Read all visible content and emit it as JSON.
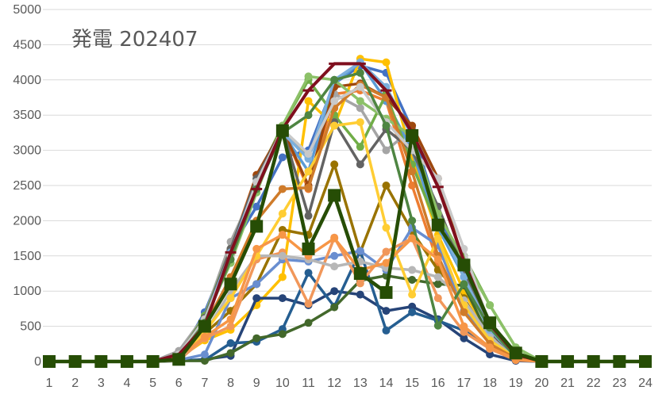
{
  "chart_data": {
    "type": "line",
    "title": "発電 202407",
    "xlabel": "",
    "ylabel": "",
    "categories": [
      "1",
      "2",
      "3",
      "4",
      "5",
      "6",
      "7",
      "8",
      "9",
      "10",
      "11",
      "12",
      "13",
      "14",
      "15",
      "16",
      "17",
      "18",
      "19",
      "20",
      "21",
      "22",
      "23",
      "24"
    ],
    "ylim": [
      0,
      5000
    ],
    "yticks": [
      0,
      500,
      1000,
      1500,
      2000,
      2500,
      3000,
      3500,
      4000,
      4500,
      5000
    ],
    "grid": true,
    "legend": "none",
    "series": [
      {
        "color": "#4472c4",
        "marker": "circle",
        "values": [
          0,
          0,
          0,
          0,
          0,
          60,
          700,
          1600,
          2200,
          2900,
          3000,
          3950,
          4200,
          4100,
          3300,
          2100,
          1300,
          500,
          80,
          0,
          0,
          0,
          0,
          0
        ]
      },
      {
        "color": "#ed7d31",
        "marker": "circle",
        "values": [
          0,
          0,
          0,
          0,
          0,
          70,
          600,
          1600,
          2650,
          3300,
          2450,
          3800,
          3850,
          3700,
          2500,
          1400,
          900,
          300,
          50,
          0,
          0,
          0,
          0,
          0
        ]
      },
      {
        "color": "#a5a5a5",
        "marker": "circle",
        "values": [
          0,
          0,
          0,
          0,
          0,
          150,
          650,
          1700,
          2500,
          3300,
          2900,
          3800,
          3600,
          3000,
          3300,
          2600,
          1400,
          450,
          70,
          0,
          0,
          0,
          0,
          0
        ]
      },
      {
        "color": "#ffc000",
        "marker": "circle",
        "values": [
          0,
          0,
          0,
          0,
          0,
          50,
          300,
          450,
          800,
          1200,
          3700,
          3350,
          4300,
          4250,
          2900,
          1800,
          1000,
          350,
          60,
          0,
          0,
          0,
          0,
          0
        ]
      },
      {
        "color": "#5b9bd5",
        "marker": "circle",
        "values": [
          0,
          0,
          0,
          0,
          0,
          60,
          620,
          1500,
          2450,
          3250,
          2700,
          3950,
          4250,
          3700,
          3000,
          1900,
          1200,
          420,
          70,
          0,
          0,
          0,
          0,
          0
        ]
      },
      {
        "color": "#70ad47",
        "marker": "circle",
        "values": [
          0,
          0,
          0,
          0,
          0,
          80,
          650,
          1600,
          2600,
          3350,
          4000,
          3500,
          3050,
          3800,
          2800,
          1900,
          1500,
          800,
          200,
          0,
          0,
          0,
          0,
          0
        ]
      },
      {
        "color": "#264478",
        "marker": "circle",
        "values": [
          0,
          0,
          0,
          0,
          0,
          10,
          30,
          80,
          900,
          900,
          800,
          1000,
          950,
          720,
          780,
          600,
          330,
          100,
          10,
          0,
          0,
          0,
          0,
          0
        ]
      },
      {
        "color": "#9e480e",
        "marker": "circle",
        "values": [
          0,
          0,
          0,
          0,
          0,
          80,
          600,
          1550,
          2650,
          3300,
          2500,
          3900,
          3950,
          3750,
          3350,
          2600,
          1400,
          500,
          80,
          0,
          0,
          0,
          0,
          0
        ]
      },
      {
        "color": "#636363",
        "marker": "circle",
        "values": [
          0,
          0,
          0,
          0,
          0,
          90,
          620,
          1600,
          2600,
          3300,
          2070,
          3400,
          2800,
          3300,
          3000,
          2200,
          1300,
          420,
          60,
          0,
          0,
          0,
          0,
          0
        ]
      },
      {
        "color": "#997300",
        "marker": "circle",
        "values": [
          0,
          0,
          0,
          0,
          0,
          40,
          400,
          720,
          1100,
          1870,
          1800,
          2800,
          1550,
          2500,
          1850,
          1300,
          900,
          300,
          40,
          0,
          0,
          0,
          0,
          0
        ]
      },
      {
        "color": "#255e91",
        "marker": "circle",
        "values": [
          0,
          0,
          0,
          0,
          0,
          20,
          20,
          260,
          280,
          460,
          1260,
          780,
          1570,
          440,
          700,
          580,
          440,
          200,
          20,
          0,
          0,
          0,
          0,
          0
        ]
      },
      {
        "color": "#43682b",
        "marker": "circle",
        "values": [
          0,
          0,
          0,
          0,
          0,
          10,
          10,
          120,
          330,
          390,
          550,
          770,
          1150,
          1220,
          1160,
          1100,
          1080,
          330,
          40,
          0,
          0,
          0,
          0,
          0
        ]
      },
      {
        "color": "#698ed0",
        "marker": "circle",
        "values": [
          0,
          0,
          0,
          0,
          0,
          20,
          100,
          900,
          1100,
          1450,
          1420,
          1500,
          1570,
          1300,
          1900,
          1650,
          720,
          300,
          40,
          0,
          0,
          0,
          0,
          0
        ]
      },
      {
        "color": "#f1975a",
        "marker": "circle",
        "values": [
          0,
          0,
          0,
          0,
          0,
          20,
          330,
          500,
          1450,
          1550,
          820,
          1760,
          1110,
          1560,
          1750,
          900,
          420,
          180,
          20,
          0,
          0,
          0,
          0,
          0
        ]
      },
      {
        "color": "#b7b7b7",
        "marker": "circle",
        "values": [
          0,
          0,
          0,
          0,
          0,
          30,
          400,
          1000,
          1500,
          1500,
          1450,
          1350,
          1420,
          1330,
          1300,
          1200,
          870,
          350,
          40,
          0,
          0,
          0,
          0,
          0
        ]
      },
      {
        "color": "#ffcd33",
        "marker": "circle",
        "values": [
          0,
          0,
          0,
          0,
          0,
          40,
          420,
          900,
          1500,
          2100,
          2700,
          3350,
          3400,
          1900,
          950,
          1750,
          800,
          300,
          50,
          0,
          0,
          0,
          0,
          0
        ]
      },
      {
        "color": "#7cafdd",
        "marker": "circle",
        "values": [
          0,
          0,
          0,
          0,
          0,
          60,
          600,
          1550,
          2550,
          3250,
          2880,
          4000,
          4250,
          3900,
          3200,
          2000,
          1200,
          450,
          70,
          0,
          0,
          0,
          0,
          0
        ]
      },
      {
        "color": "#8cc168",
        "marker": "circle",
        "values": [
          0,
          0,
          0,
          0,
          0,
          70,
          600,
          1400,
          2400,
          3350,
          4050,
          4000,
          3700,
          3450,
          3200,
          2100,
          1450,
          800,
          200,
          0,
          0,
          0,
          0,
          0
        ]
      },
      {
        "color": "#cf7b2a",
        "marker": "circle",
        "values": [
          0,
          0,
          0,
          0,
          0,
          60,
          500,
          1200,
          2000,
          2450,
          2470,
          3600,
          3930,
          3750,
          2700,
          1500,
          700,
          250,
          40,
          0,
          0,
          0,
          0,
          0
        ]
      },
      {
        "color": "#c9c9c9",
        "marker": "circle",
        "values": [
          0,
          0,
          0,
          0,
          0,
          100,
          600,
          1500,
          2550,
          3300,
          2950,
          3700,
          3900,
          3400,
          3000,
          2600,
          1600,
          500,
          60,
          0,
          0,
          0,
          0,
          0
        ]
      },
      {
        "color": "#4e8542",
        "marker": "circle",
        "values": [
          0,
          0,
          0,
          0,
          0,
          70,
          550,
          1450,
          2450,
          3250,
          3500,
          4000,
          4100,
          3350,
          2000,
          510,
          1100,
          480,
          60,
          0,
          0,
          0,
          0,
          0
        ]
      },
      {
        "color": "#f79646",
        "marker": "circle",
        "values": [
          0,
          0,
          0,
          0,
          0,
          60,
          350,
          600,
          1600,
          1800,
          1500,
          1750,
          1300,
          1400,
          1750,
          1450,
          500,
          200,
          30,
          0,
          0,
          0,
          0,
          0
        ]
      },
      {
        "color": "#7f0f1e",
        "marker": "dash",
        "values": [
          0,
          0,
          0,
          0,
          0,
          100,
          500,
          1550,
          2450,
          3300,
          3850,
          4230,
          4230,
          3850,
          3250,
          2480,
          1430,
          530,
          100,
          0,
          0,
          0,
          0,
          0
        ]
      },
      {
        "color": "#264d05",
        "marker": "square",
        "values": [
          0,
          0,
          0,
          0,
          0,
          30,
          500,
          1100,
          1920,
          3280,
          1600,
          2360,
          1250,
          980,
          3210,
          1940,
          1370,
          550,
          120,
          0,
          0,
          0,
          0,
          0
        ]
      }
    ]
  }
}
